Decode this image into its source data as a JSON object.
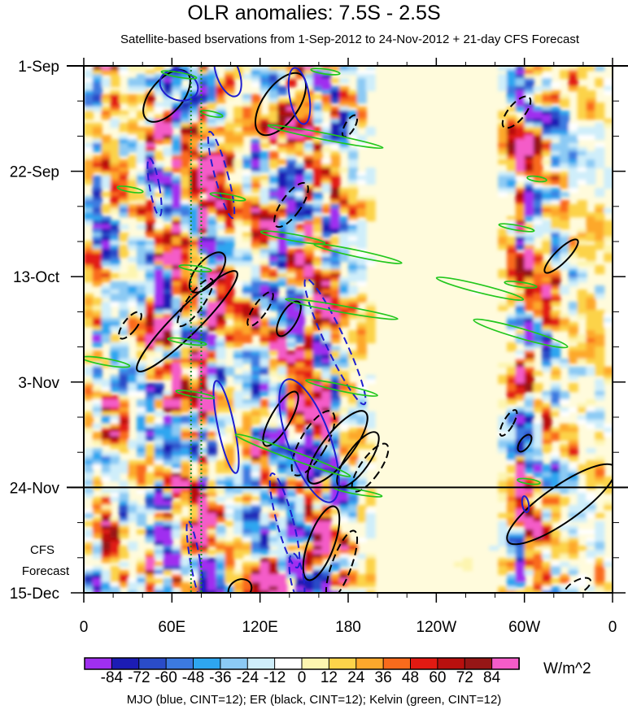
{
  "chart_data": {
    "type": "heatmap",
    "title": "OLR anomalies: 7.5S - 2.5S",
    "subtitle": "Satellite-based bservations from 1-Sep-2012 to 24-Nov-2012 + 21-day CFS Forecast",
    "x_tick_labels": [
      "0",
      "60E",
      "120E",
      "180",
      "120W",
      "60W",
      "0"
    ],
    "x_ticks_deg": [
      0,
      60,
      120,
      180,
      240,
      300,
      360
    ],
    "y_tick_labels": [
      "1-Sep",
      "22-Sep",
      "13-Oct",
      "3-Nov",
      "24-Nov",
      "15-Dec"
    ],
    "y_ticks_day": [
      0,
      21,
      42,
      63,
      84,
      105
    ],
    "forecast_label": [
      "CFS",
      "Forecast"
    ],
    "forecast_start_day": 84,
    "colorbar": {
      "labels": [
        "-84",
        "-72",
        "-60",
        "-48",
        "-36",
        "-24",
        "-12",
        "0",
        "12",
        "24",
        "36",
        "48",
        "60",
        "72",
        "84"
      ],
      "colors": [
        "#a02ff0",
        "#1c1cb4",
        "#2a4cc8",
        "#3c7ae0",
        "#2ea6f0",
        "#8ccaf4",
        "#cfeefa",
        "#ffffff",
        "#fdf5b0",
        "#fcd34a",
        "#fda82c",
        "#f96b1c",
        "#e21a12",
        "#b8100e",
        "#961616",
        "#f45cc8"
      ],
      "units": "W/m^2"
    },
    "footnote": "MJO (blue, CINT=12); ER (black, CINT=12); Kelvin (green, CINT=12)",
    "reference_lines_deg": [
      73,
      80
    ]
  }
}
